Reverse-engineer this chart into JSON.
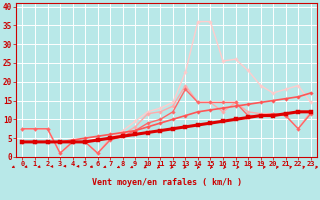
{
  "background_color": "#b8e8e8",
  "grid_color": "#ffffff",
  "xlabel": "Vent moyen/en rafales ( km/h )",
  "xlim": [
    -0.5,
    23.5
  ],
  "ylim": [
    0,
    41
  ],
  "yticks": [
    0,
    5,
    10,
    15,
    20,
    25,
    30,
    35,
    40
  ],
  "xticks": [
    0,
    1,
    2,
    3,
    4,
    5,
    6,
    7,
    8,
    9,
    10,
    11,
    12,
    13,
    14,
    15,
    16,
    17,
    18,
    19,
    20,
    21,
    22,
    23
  ],
  "lines": [
    {
      "x": [
        0,
        1,
        2,
        3,
        4,
        5,
        6,
        7,
        8,
        9,
        10,
        11,
        12,
        13,
        14,
        15,
        16,
        17,
        18,
        19,
        20,
        21,
        22,
        23
      ],
      "y": [
        4,
        4,
        4,
        4,
        4,
        4,
        4.5,
        5,
        5.5,
        6,
        6.5,
        7,
        7.5,
        8,
        8.5,
        9,
        9.5,
        10,
        10.5,
        11,
        11,
        11.5,
        12,
        12
      ],
      "color": "#dd0000",
      "lw": 2.2,
      "marker": "s",
      "ms": 2.2,
      "zorder": 10
    },
    {
      "x": [
        0,
        1,
        2,
        3,
        4,
        5,
        6,
        7,
        8,
        9,
        10,
        11,
        12,
        13,
        14,
        15,
        16,
        17,
        18,
        19,
        20,
        21,
        22,
        23
      ],
      "y": [
        4,
        4,
        4,
        4,
        4.5,
        5,
        5.5,
        6,
        6.5,
        7,
        8,
        9,
        10,
        11,
        12,
        12.5,
        13,
        13.5,
        14,
        14.5,
        15,
        15.5,
        16,
        17
      ],
      "color": "#ff5555",
      "lw": 1.2,
      "marker": "D",
      "ms": 1.8,
      "zorder": 8
    },
    {
      "x": [
        0,
        1,
        2,
        3,
        4,
        5,
        6,
        7,
        8,
        9,
        10,
        11,
        12,
        13,
        14,
        15,
        16,
        17,
        18,
        19,
        20,
        21,
        22,
        23
      ],
      "y": [
        7.5,
        7.5,
        7.5,
        1,
        4,
        4,
        1,
        4.5,
        5.5,
        7,
        9,
        10,
        12,
        18,
        14.5,
        14.5,
        14.5,
        14.5,
        11,
        11,
        11.5,
        11,
        7.5,
        11.5
      ],
      "color": "#ff6666",
      "lw": 1.0,
      "marker": "D",
      "ms": 1.8,
      "zorder": 6
    },
    {
      "x": [
        0,
        1,
        2,
        3,
        4,
        5,
        6,
        7,
        8,
        9,
        10,
        11,
        12,
        13,
        14,
        15,
        16,
        17,
        18,
        19,
        20,
        21,
        22,
        23
      ],
      "y": [
        7.5,
        7.5,
        7.5,
        1,
        4,
        4,
        1,
        5,
        6,
        8,
        11.5,
        12,
        13.5,
        19,
        14.5,
        14.5,
        12,
        14.5,
        12,
        11.5,
        11.5,
        11,
        7.5,
        12
      ],
      "color": "#ffaaaa",
      "lw": 1.0,
      "marker": "D",
      "ms": 1.8,
      "zorder": 4
    },
    {
      "x": [
        0,
        1,
        2,
        3,
        4,
        5,
        6,
        7,
        8,
        9,
        10,
        11,
        12,
        13,
        14,
        15,
        16,
        17,
        18,
        19,
        20,
        21,
        22,
        23
      ],
      "y": [
        7.5,
        7.5,
        7.5,
        1,
        4,
        4,
        1,
        5,
        7,
        9.5,
        12,
        13,
        14.5,
        22.5,
        36,
        36,
        25.5,
        26,
        23,
        19,
        17,
        18,
        19,
        14.5
      ],
      "color": "#ffcccc",
      "lw": 1.0,
      "marker": "D",
      "ms": 1.8,
      "zorder": 2
    }
  ],
  "arrow_color": "#cc0000",
  "xlabel_color": "#cc0000",
  "tick_color": "#cc0000",
  "tick_fontsize": 5.0,
  "xlabel_fontsize": 6.0
}
